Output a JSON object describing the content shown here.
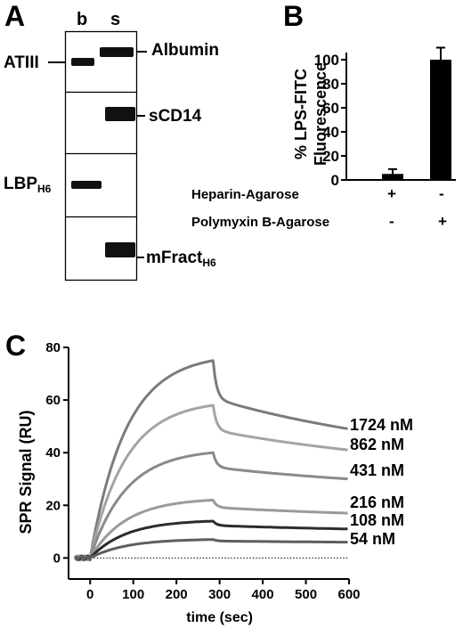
{
  "panels": {
    "a": {
      "letter": "A"
    },
    "b": {
      "letter": "B"
    },
    "c": {
      "letter": "C"
    }
  },
  "blot": {
    "lanes": [
      "b",
      "s"
    ],
    "rows": [
      {
        "left": "ATIII",
        "right": "Albumin",
        "band_b": true,
        "band_s": true
      },
      {
        "left": "",
        "right": "sCD14",
        "band_b": false,
        "band_s": true
      },
      {
        "left": "LBP",
        "left_sub": "H6",
        "right": "",
        "band_b": true,
        "band_s": false
      },
      {
        "left": "",
        "right": "mFract",
        "right_sub": "H6",
        "band_b": false,
        "band_s": true
      }
    ]
  },
  "chart_data": [
    {
      "type": "bar",
      "ylabel": "% LPS-FITC Fluorescence",
      "ylabel_lines": [
        "% LPS-FITC",
        "Fluorescence"
      ],
      "ylim": [
        0,
        100
      ],
      "yticks": [
        0,
        20,
        40,
        60,
        80,
        100
      ],
      "bars": [
        {
          "value": 5,
          "error": 4
        },
        {
          "value": 100,
          "error": 10
        }
      ],
      "conditions": [
        {
          "label": "Heparin-Agarose",
          "signs": [
            "+",
            "-"
          ]
        },
        {
          "label": "Polymyxin B-Agarose",
          "signs": [
            "-",
            "+"
          ]
        }
      ],
      "bar_color": "#000000"
    },
    {
      "type": "line",
      "xlabel": "time (sec)",
      "ylabel": "SPR Signal (RU)",
      "xlim": [
        -50,
        600
      ],
      "ylim": [
        -8,
        80
      ],
      "xticks": [
        0,
        100,
        200,
        300,
        400,
        500,
        600
      ],
      "yticks": [
        0,
        20,
        40,
        60,
        80
      ],
      "baseline": "dotted line at 0",
      "injection_end_sec": 285,
      "series": [
        {
          "name": "1724 nM",
          "peak": 75,
          "end": 49,
          "color": "#7b7b7b"
        },
        {
          "name": "862 nM",
          "peak": 58,
          "end": 41,
          "color": "#a4a4a4"
        },
        {
          "name": "431 nM",
          "peak": 40,
          "end": 30,
          "color": "#8a8a8a"
        },
        {
          "name": "216 nM",
          "peak": 22,
          "end": 17,
          "color": "#9a9a9a"
        },
        {
          "name": "108 nM",
          "peak": 14,
          "end": 11,
          "color": "#2c2c2c"
        },
        {
          "name": "54 nM",
          "peak": 7,
          "end": 6,
          "color": "#5e5e5e"
        }
      ]
    }
  ]
}
